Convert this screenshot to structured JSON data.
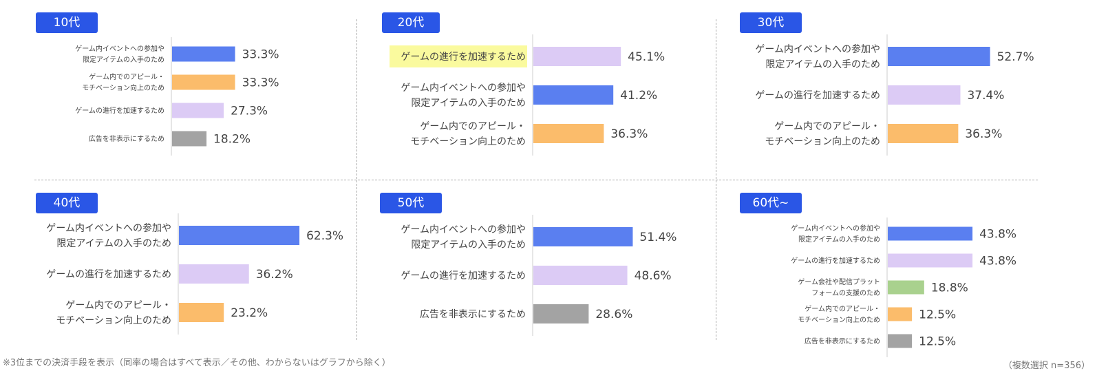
{
  "colors": {
    "badge": "#2a56e6",
    "event": "#5a7ff0",
    "progress": "#dccbf5",
    "appeal": "#fbbc6b",
    "hide_ads": "#a3a3a3",
    "support": "#a9d18e",
    "highlight": "#fafa9e"
  },
  "footnote": "※3位までの決済手段を表示（同率の場合はすべて表示／その他、わからないはグラフから除く）",
  "sample_note": "（複数選択 n=356）",
  "chart_data": [
    {
      "type": "bar",
      "title": "10代",
      "xlim": [
        0,
        100
      ],
      "categories": [
        [
          "ゲーム内イベントへの参加や",
          "限定アイテムの入手のため"
        ],
        [
          "ゲーム内でのアピール・",
          "モチベーション向上のため"
        ],
        [
          "ゲームの進行を加速するため"
        ],
        [
          "広告を非表示にするため"
        ]
      ],
      "values": [
        33.3,
        33.3,
        27.3,
        18.2
      ],
      "value_labels": [
        "33.3%",
        "33.3%",
        "27.3%",
        "18.2%"
      ],
      "bar_colors": [
        "event",
        "appeal",
        "progress",
        "hide_ads"
      ]
    },
    {
      "type": "bar",
      "title": "20代",
      "xlim": [
        0,
        100
      ],
      "categories": [
        [
          "ゲームの進行を加速するため"
        ],
        [
          "ゲーム内イベントへの参加や",
          "限定アイテムの入手のため"
        ],
        [
          "ゲーム内でのアピール・",
          "モチベーション向上のため"
        ]
      ],
      "values": [
        45.1,
        41.2,
        36.3
      ],
      "value_labels": [
        "45.1%",
        "41.2%",
        "36.3%"
      ],
      "bar_colors": [
        "progress",
        "event",
        "appeal"
      ],
      "highlighted_category": 0
    },
    {
      "type": "bar",
      "title": "30代",
      "xlim": [
        0,
        100
      ],
      "categories": [
        [
          "ゲーム内イベントへの参加や",
          "限定アイテムの入手のため"
        ],
        [
          "ゲームの進行を加速するため"
        ],
        [
          "ゲーム内でのアピール・",
          "モチベーション向上のため"
        ]
      ],
      "values": [
        52.7,
        37.4,
        36.3
      ],
      "value_labels": [
        "52.7%",
        "37.4%",
        "36.3%"
      ],
      "bar_colors": [
        "event",
        "progress",
        "appeal"
      ]
    },
    {
      "type": "bar",
      "title": "40代",
      "xlim": [
        0,
        100
      ],
      "categories": [
        [
          "ゲーム内イベントへの参加や",
          "限定アイテムの入手のため"
        ],
        [
          "ゲームの進行を加速するため"
        ],
        [
          "ゲーム内でのアピール・",
          "モチベーション向上のため"
        ]
      ],
      "values": [
        62.3,
        36.2,
        23.2
      ],
      "value_labels": [
        "62.3%",
        "36.2%",
        "23.2%"
      ],
      "bar_colors": [
        "event",
        "progress",
        "appeal"
      ]
    },
    {
      "type": "bar",
      "title": "50代",
      "xlim": [
        0,
        100
      ],
      "categories": [
        [
          "ゲーム内イベントへの参加や",
          "限定アイテムの入手のため"
        ],
        [
          "ゲームの進行を加速するため"
        ],
        [
          "広告を非表示にするため"
        ]
      ],
      "values": [
        51.4,
        48.6,
        28.6
      ],
      "value_labels": [
        "51.4%",
        "48.6%",
        "28.6%"
      ],
      "bar_colors": [
        "event",
        "progress",
        "hide_ads"
      ]
    },
    {
      "type": "bar",
      "title": "60代~",
      "xlim": [
        0,
        100
      ],
      "categories": [
        [
          "ゲーム内イベントへの参加や",
          "限定アイテムの入手のため"
        ],
        [
          "ゲームの進行を加速するため"
        ],
        [
          "ゲーム会社や配信プラット",
          "フォームの支援のため"
        ],
        [
          "ゲーム内でのアピール・",
          "モチベーション向上のため"
        ],
        [
          "広告を非表示にするため"
        ]
      ],
      "values": [
        43.8,
        43.8,
        18.8,
        12.5,
        12.5
      ],
      "value_labels": [
        "43.8%",
        "43.8%",
        "18.8%",
        "12.5%",
        "12.5%"
      ],
      "bar_colors": [
        "event",
        "progress",
        "support",
        "appeal",
        "hide_ads"
      ]
    }
  ]
}
